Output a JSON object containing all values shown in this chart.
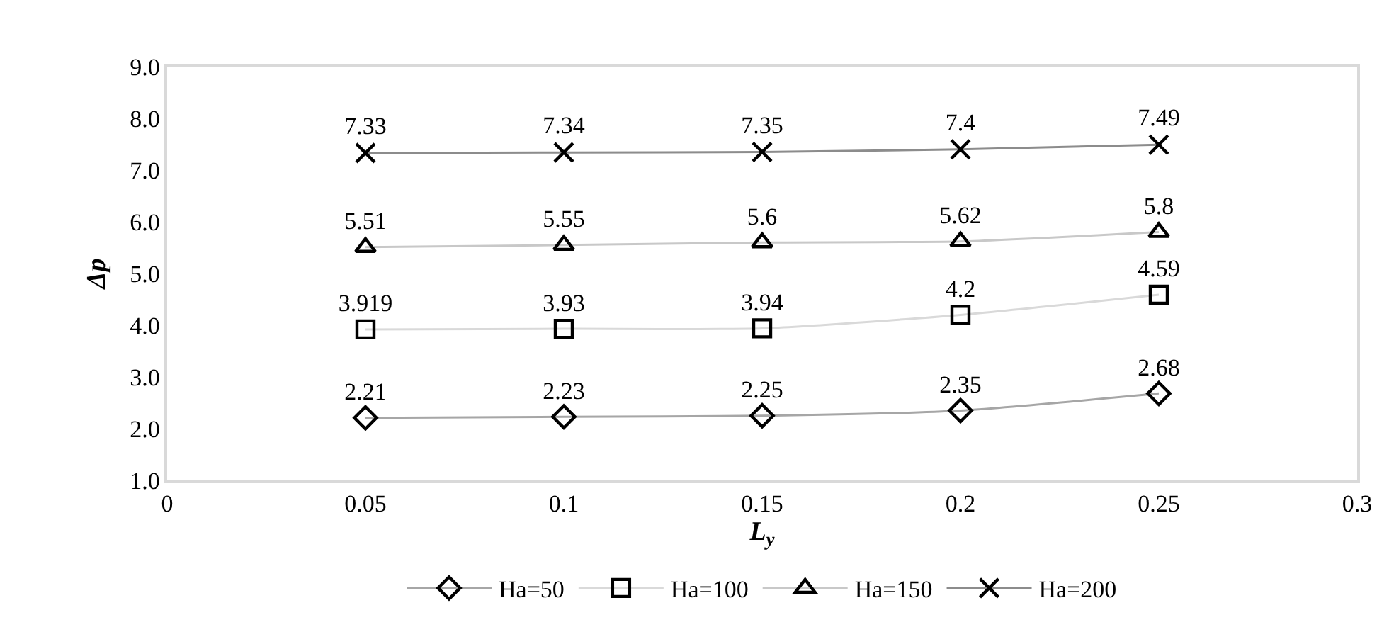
{
  "chart_data": {
    "type": "line",
    "xlabel": "L$_{y}$",
    "ylabel": "Δp",
    "x": [
      0.05,
      0.1,
      0.15,
      0.2,
      0.25
    ],
    "series": [
      {
        "name": "Ha=50",
        "color": "#a6a6a6",
        "marker": "diamond",
        "values": [
          2.21,
          2.23,
          2.25,
          2.35,
          2.68
        ]
      },
      {
        "name": "Ha=100",
        "color": "#d9d9d9",
        "marker": "square",
        "values": [
          3.919,
          3.93,
          3.94,
          4.2,
          4.59
        ]
      },
      {
        "name": "Ha=150",
        "color": "#c8c8c8",
        "marker": "triangle",
        "values": [
          5.51,
          5.55,
          5.6,
          5.62,
          5.8
        ]
      },
      {
        "name": "Ha=200",
        "color": "#8c8c8c",
        "marker": "cross",
        "values": [
          7.33,
          7.34,
          7.35,
          7.4,
          7.49
        ]
      }
    ],
    "xlim": [
      0,
      0.3
    ],
    "xticks": [
      0,
      0.05,
      0.1,
      0.15,
      0.2,
      0.25,
      0.3
    ],
    "ylim": [
      1.0,
      9.0
    ],
    "yticks": [
      {
        "value": 1,
        "label": "1.0"
      },
      {
        "value": 2,
        "label": "2.0"
      },
      {
        "value": 3,
        "label": "3.0"
      },
      {
        "value": 4,
        "label": "4.0"
      },
      {
        "value": 5,
        "label": "5.0"
      },
      {
        "value": 6,
        "label": "6.0"
      },
      {
        "value": 7,
        "label": "7.0"
      },
      {
        "value": 8,
        "label": "8.0"
      },
      {
        "value": 9,
        "label": "9.0"
      }
    ],
    "grid": false,
    "legend": "bottom",
    "data_labels": true,
    "line_style": "solid"
  }
}
